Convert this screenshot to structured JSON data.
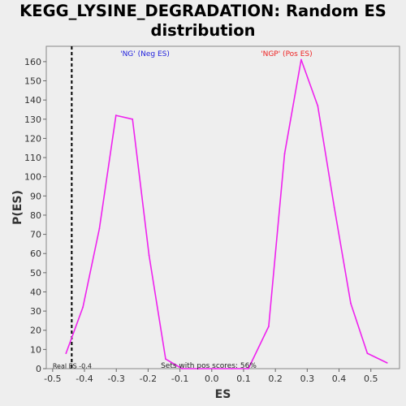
{
  "title": {
    "line1": "KEGG_LYSINE_DEGRADATION: Random ES",
    "line2": "distribution"
  },
  "chart_data": {
    "type": "line",
    "xlabel": "ES",
    "ylabel": "P(ES)",
    "xlim": [
      -0.52,
      0.59
    ],
    "ylim": [
      0,
      168
    ],
    "x_ticks": [
      -0.5,
      -0.4,
      -0.3,
      -0.2,
      -0.1,
      0.0,
      0.1,
      0.2,
      0.3,
      0.4,
      0.5
    ],
    "x_tick_labels": [
      "-0.5",
      "-0.4",
      "-0.3",
      "-0.2",
      "-0.1",
      "0.0",
      "0.1",
      "0.2",
      "0.3",
      "0.4",
      "0.5"
    ],
    "y_ticks": [
      0,
      10,
      20,
      30,
      40,
      50,
      60,
      70,
      80,
      90,
      100,
      110,
      120,
      130,
      140,
      150,
      160
    ],
    "grid": true,
    "series": [
      {
        "color": "#ee22ee",
        "x": [
          -0.458,
          -0.405,
          -0.353,
          -0.301,
          -0.249,
          -0.197,
          -0.145,
          -0.093,
          -0.041,
          0.011,
          0.063,
          0.115,
          0.179,
          0.229,
          0.281,
          0.333,
          0.385,
          0.437,
          0.489,
          0.551
        ],
        "y": [
          8,
          32,
          73,
          132,
          130,
          59,
          5,
          0,
          0,
          0,
          0,
          0,
          22,
          112,
          161,
          137,
          84,
          34,
          8,
          3
        ]
      }
    ],
    "real_es": -0.44,
    "real_es_label": "Real ES -0.4",
    "annotations": {
      "neg": "'NG' (Neg ES)",
      "pos": "'NGP' (Pos ES)",
      "sets_pos": "Sets with pos scores: 56%"
    },
    "colors": {
      "neg": "#2222dd",
      "pos": "#ee2222",
      "line": "#ee22ee",
      "grid": "#ffffff",
      "plot_bg": "#eeeeee"
    }
  }
}
